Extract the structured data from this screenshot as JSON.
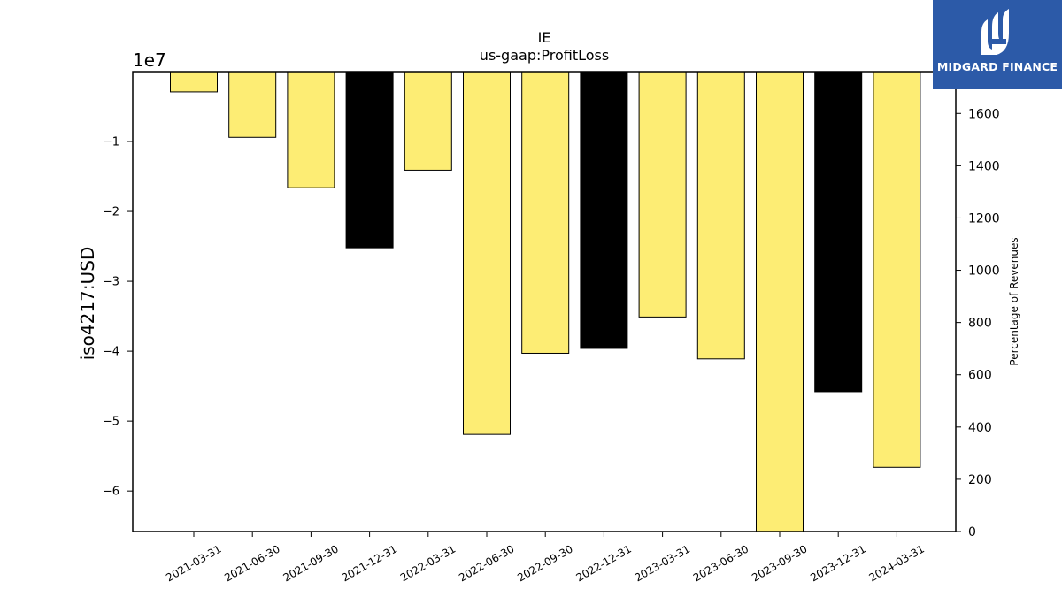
{
  "chart_data": {
    "type": "bar",
    "title": "IE",
    "subtitle": "us-gaap:ProfitLoss",
    "ylabel": "iso4217:USD",
    "y_offset_label": "1e7",
    "y2label": "Percentage of Revenues",
    "categories": [
      "2021-03-31",
      "2021-06-30",
      "2021-09-30",
      "2021-12-31",
      "2022-03-31",
      "2022-06-30",
      "2022-09-30",
      "2022-12-31",
      "2023-03-31",
      "2023-06-30",
      "2023-09-30",
      "2023-12-31",
      "2024-03-31"
    ],
    "values": [
      -2900000,
      -9400000,
      -16600000,
      -25200000,
      -14100000,
      -51900000,
      -40300000,
      -39600000,
      -35100000,
      -41100000,
      -65800000,
      -45800000,
      -56600000
    ],
    "bar_colors": [
      "#fded74",
      "#fded74",
      "#fded74",
      "#000000",
      "#fded74",
      "#fded74",
      "#fded74",
      "#000000",
      "#fded74",
      "#fded74",
      "#fded74",
      "#000000",
      "#fded74"
    ],
    "ylim": [
      -65800000,
      0
    ],
    "yticks": [
      -10000000,
      -20000000,
      -30000000,
      -40000000,
      -50000000,
      -60000000
    ],
    "ytick_labels": [
      "−1",
      "−2",
      "−3",
      "−4",
      "−5",
      "−6"
    ],
    "y2lim": [
      0,
      1760
    ],
    "y2ticks": [
      0,
      200,
      400,
      600,
      800,
      1000,
      1200,
      1400,
      1600
    ],
    "y2tick_labels": [
      "0",
      "200",
      "400",
      "600",
      "800",
      "1000",
      "1200",
      "1400",
      "1600"
    ],
    "grid": false,
    "legend": "none"
  },
  "logo": {
    "text": "MIDGARD FINANCE",
    "color": "#2c5aa8"
  }
}
